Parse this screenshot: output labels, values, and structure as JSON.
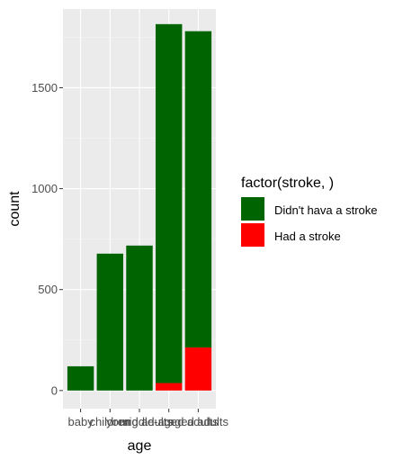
{
  "chart_data": {
    "type": "bar",
    "stacked": true,
    "categories": [
      "baby",
      "children",
      "young adults",
      "middle-aged adults",
      "aged adults"
    ],
    "series": [
      {
        "name": "Didn't hava a stroke",
        "values": [
          120,
          678,
          718,
          1778,
          1567
        ]
      },
      {
        "name": "Had a stroke",
        "values": [
          0,
          0,
          0,
          37,
          213
        ]
      }
    ],
    "x_tick_labels": [
      "baby",
      "children",
      "young adults",
      "middle-aged adults",
      "aged adults"
    ],
    "y_ticks": [
      0,
      500,
      1000,
      1500
    ],
    "ylim": [
      -90,
      1890
    ],
    "xlabel": "age",
    "ylabel": "count",
    "legend_title": "factor(stroke, )",
    "legend_position": "right",
    "grid": true,
    "colors": {
      "panel_background": "#ebebeb",
      "grid_major": "#ffffff",
      "grid_minor": "#f5f5f5",
      "series": [
        "#006400",
        "#ff0000"
      ]
    }
  }
}
